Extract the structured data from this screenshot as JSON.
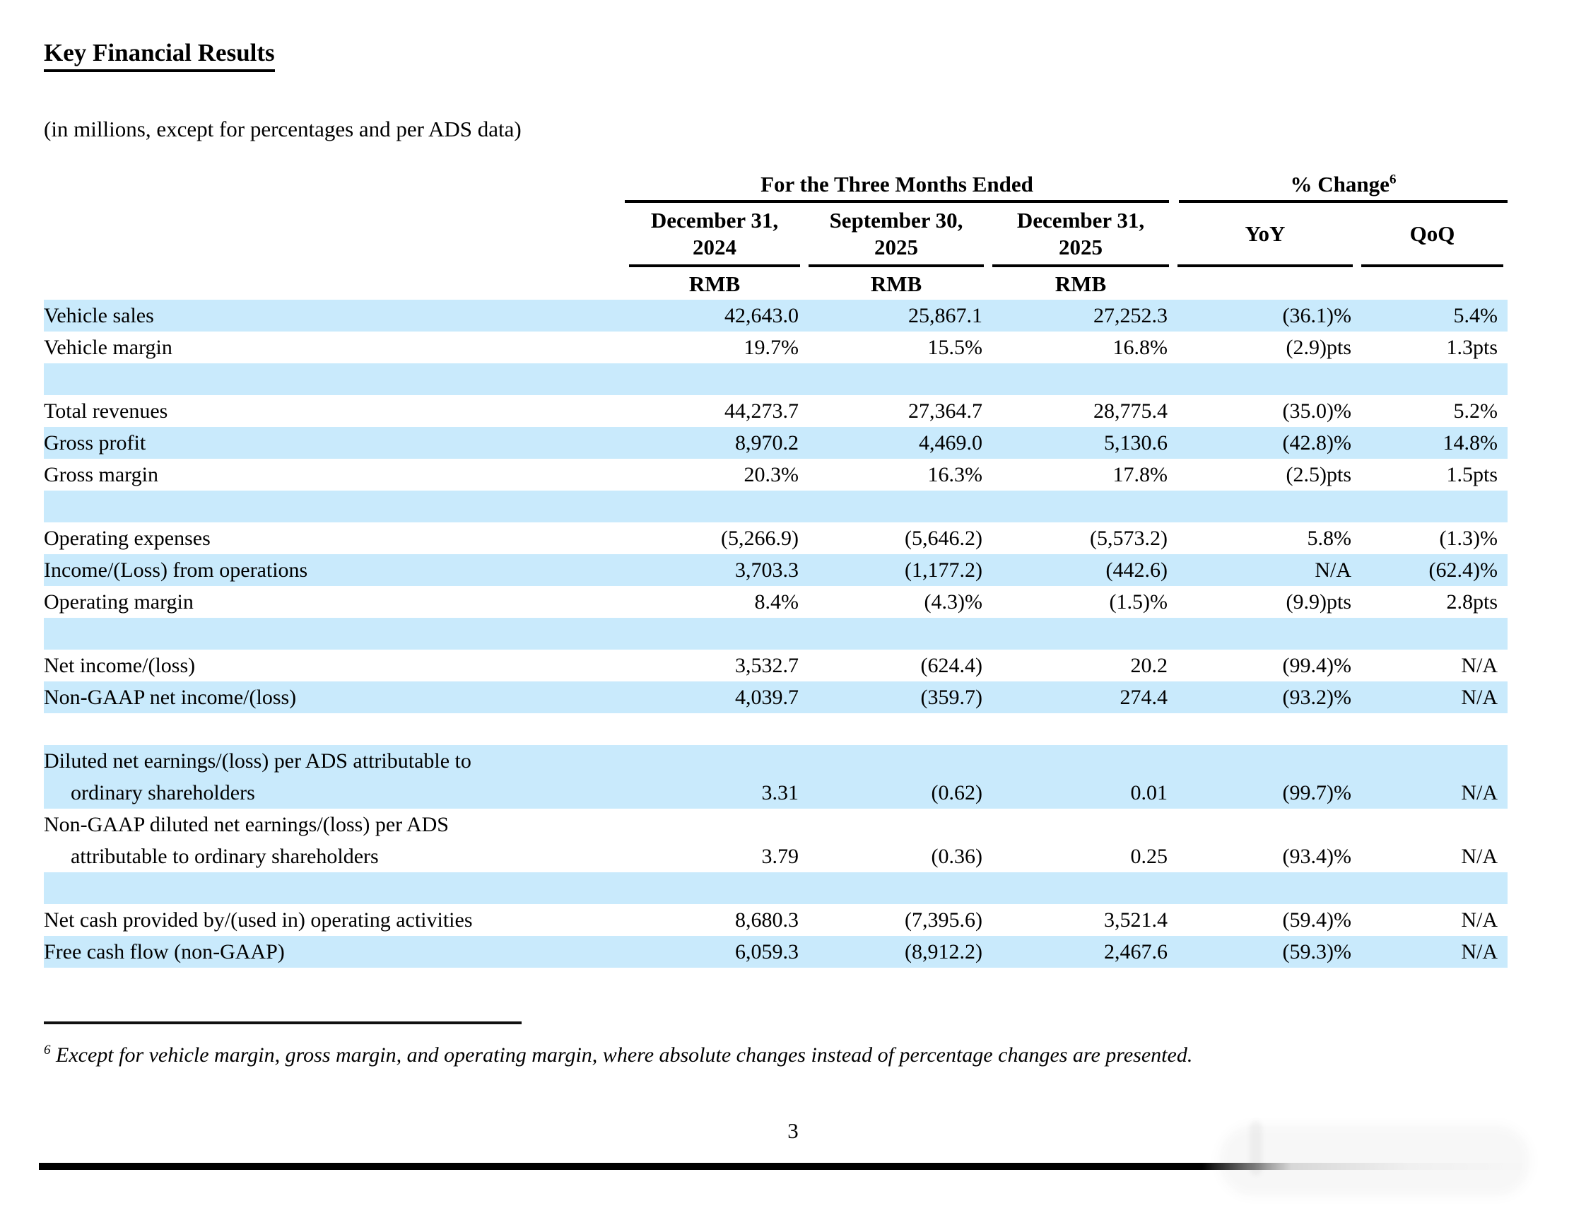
{
  "document": {
    "title": "Key Financial Results",
    "subtitle": "(in millions, except for percentages and per ADS data)"
  },
  "table": {
    "col_groups": [
      {
        "label": "For the Three Months Ended",
        "footnote_ref": ""
      },
      {
        "label": "% Change",
        "footnote_ref": "6"
      }
    ],
    "period_columns": [
      {
        "line1": "December 31,",
        "line2": "2024",
        "currency": "RMB"
      },
      {
        "line1": "September 30,",
        "line2": "2025",
        "currency": "RMB"
      },
      {
        "line1": "December 31,",
        "line2": "2025",
        "currency": "RMB"
      }
    ],
    "change_columns": [
      {
        "label": "YoY"
      },
      {
        "label": "QoQ"
      }
    ],
    "rows": [
      {
        "label": "Vehicle sales",
        "values": [
          "42,643.0",
          "25,867.1",
          "27,252.3",
          "(36.1)%",
          "5.4%"
        ],
        "highlighted": true
      },
      {
        "label": "Vehicle margin",
        "values": [
          "19.7%",
          "15.5%",
          "16.8%",
          "(2.9)pts",
          "1.3pts"
        ],
        "highlighted": false
      },
      {
        "spacer": true,
        "highlighted": true
      },
      {
        "label": "Total revenues",
        "values": [
          "44,273.7",
          "27,364.7",
          "28,775.4",
          "(35.0)%",
          "5.2%"
        ],
        "highlighted": false
      },
      {
        "label": "Gross profit",
        "values": [
          "8,970.2",
          "4,469.0",
          "5,130.6",
          "(42.8)%",
          "14.8%"
        ],
        "highlighted": true
      },
      {
        "label": "Gross margin",
        "values": [
          "20.3%",
          "16.3%",
          "17.8%",
          "(2.5)pts",
          "1.5pts"
        ],
        "highlighted": false
      },
      {
        "spacer": true,
        "highlighted": true
      },
      {
        "label": "Operating expenses",
        "values": [
          "(5,266.9)",
          "(5,646.2)",
          "(5,573.2)",
          "5.8%",
          "(1.3)%"
        ],
        "highlighted": false
      },
      {
        "label": "Income/(Loss) from operations",
        "values": [
          "3,703.3",
          "(1,177.2)",
          "(442.6)",
          "N/A",
          "(62.4)%"
        ],
        "highlighted": true
      },
      {
        "label": "Operating margin",
        "values": [
          "8.4%",
          "(4.3)%",
          "(1.5)%",
          "(9.9)pts",
          "2.8pts"
        ],
        "highlighted": false
      },
      {
        "spacer": true,
        "highlighted": true
      },
      {
        "label": "Net income/(loss)",
        "values": [
          "3,532.7",
          "(624.4)",
          "20.2",
          "(99.4)%",
          "N/A"
        ],
        "highlighted": false
      },
      {
        "label": "Non-GAAP net income/(loss)",
        "values": [
          "4,039.7",
          "(359.7)",
          "274.4",
          "(93.2)%",
          "N/A"
        ],
        "highlighted": true
      },
      {
        "spacer": true,
        "highlighted": false
      },
      {
        "label": "Diluted net earnings/(loss) per ADS attributable to",
        "label_line2": "ordinary shareholders",
        "values": [
          "3.31",
          "(0.62)",
          "0.01",
          "(99.7)%",
          "N/A"
        ],
        "highlighted": true
      },
      {
        "label": "Non-GAAP diluted net earnings/(loss) per ADS",
        "label_line2": "attributable to ordinary shareholders",
        "values": [
          "3.79",
          "(0.36)",
          "0.25",
          "(93.4)%",
          "N/A"
        ],
        "highlighted": false
      },
      {
        "spacer": true,
        "highlighted": true
      },
      {
        "label": "Net cash provided by/(used in) operating activities",
        "values": [
          "8,680.3",
          "(7,395.6)",
          "3,521.4",
          "(59.4)%",
          "N/A"
        ],
        "highlighted": false
      },
      {
        "label": "Free cash flow (non-GAAP)",
        "values": [
          "6,059.3",
          "(8,912.2)",
          "2,467.6",
          "(59.3)%",
          "N/A"
        ],
        "highlighted": true
      }
    ]
  },
  "footnote": {
    "marker": "6",
    "text": "Except for vehicle margin, gross margin, and operating margin, where absolute changes instead of percentage changes are presented."
  },
  "page": {
    "number": "3"
  },
  "colors": {
    "row_highlight": "#c9eafc"
  }
}
